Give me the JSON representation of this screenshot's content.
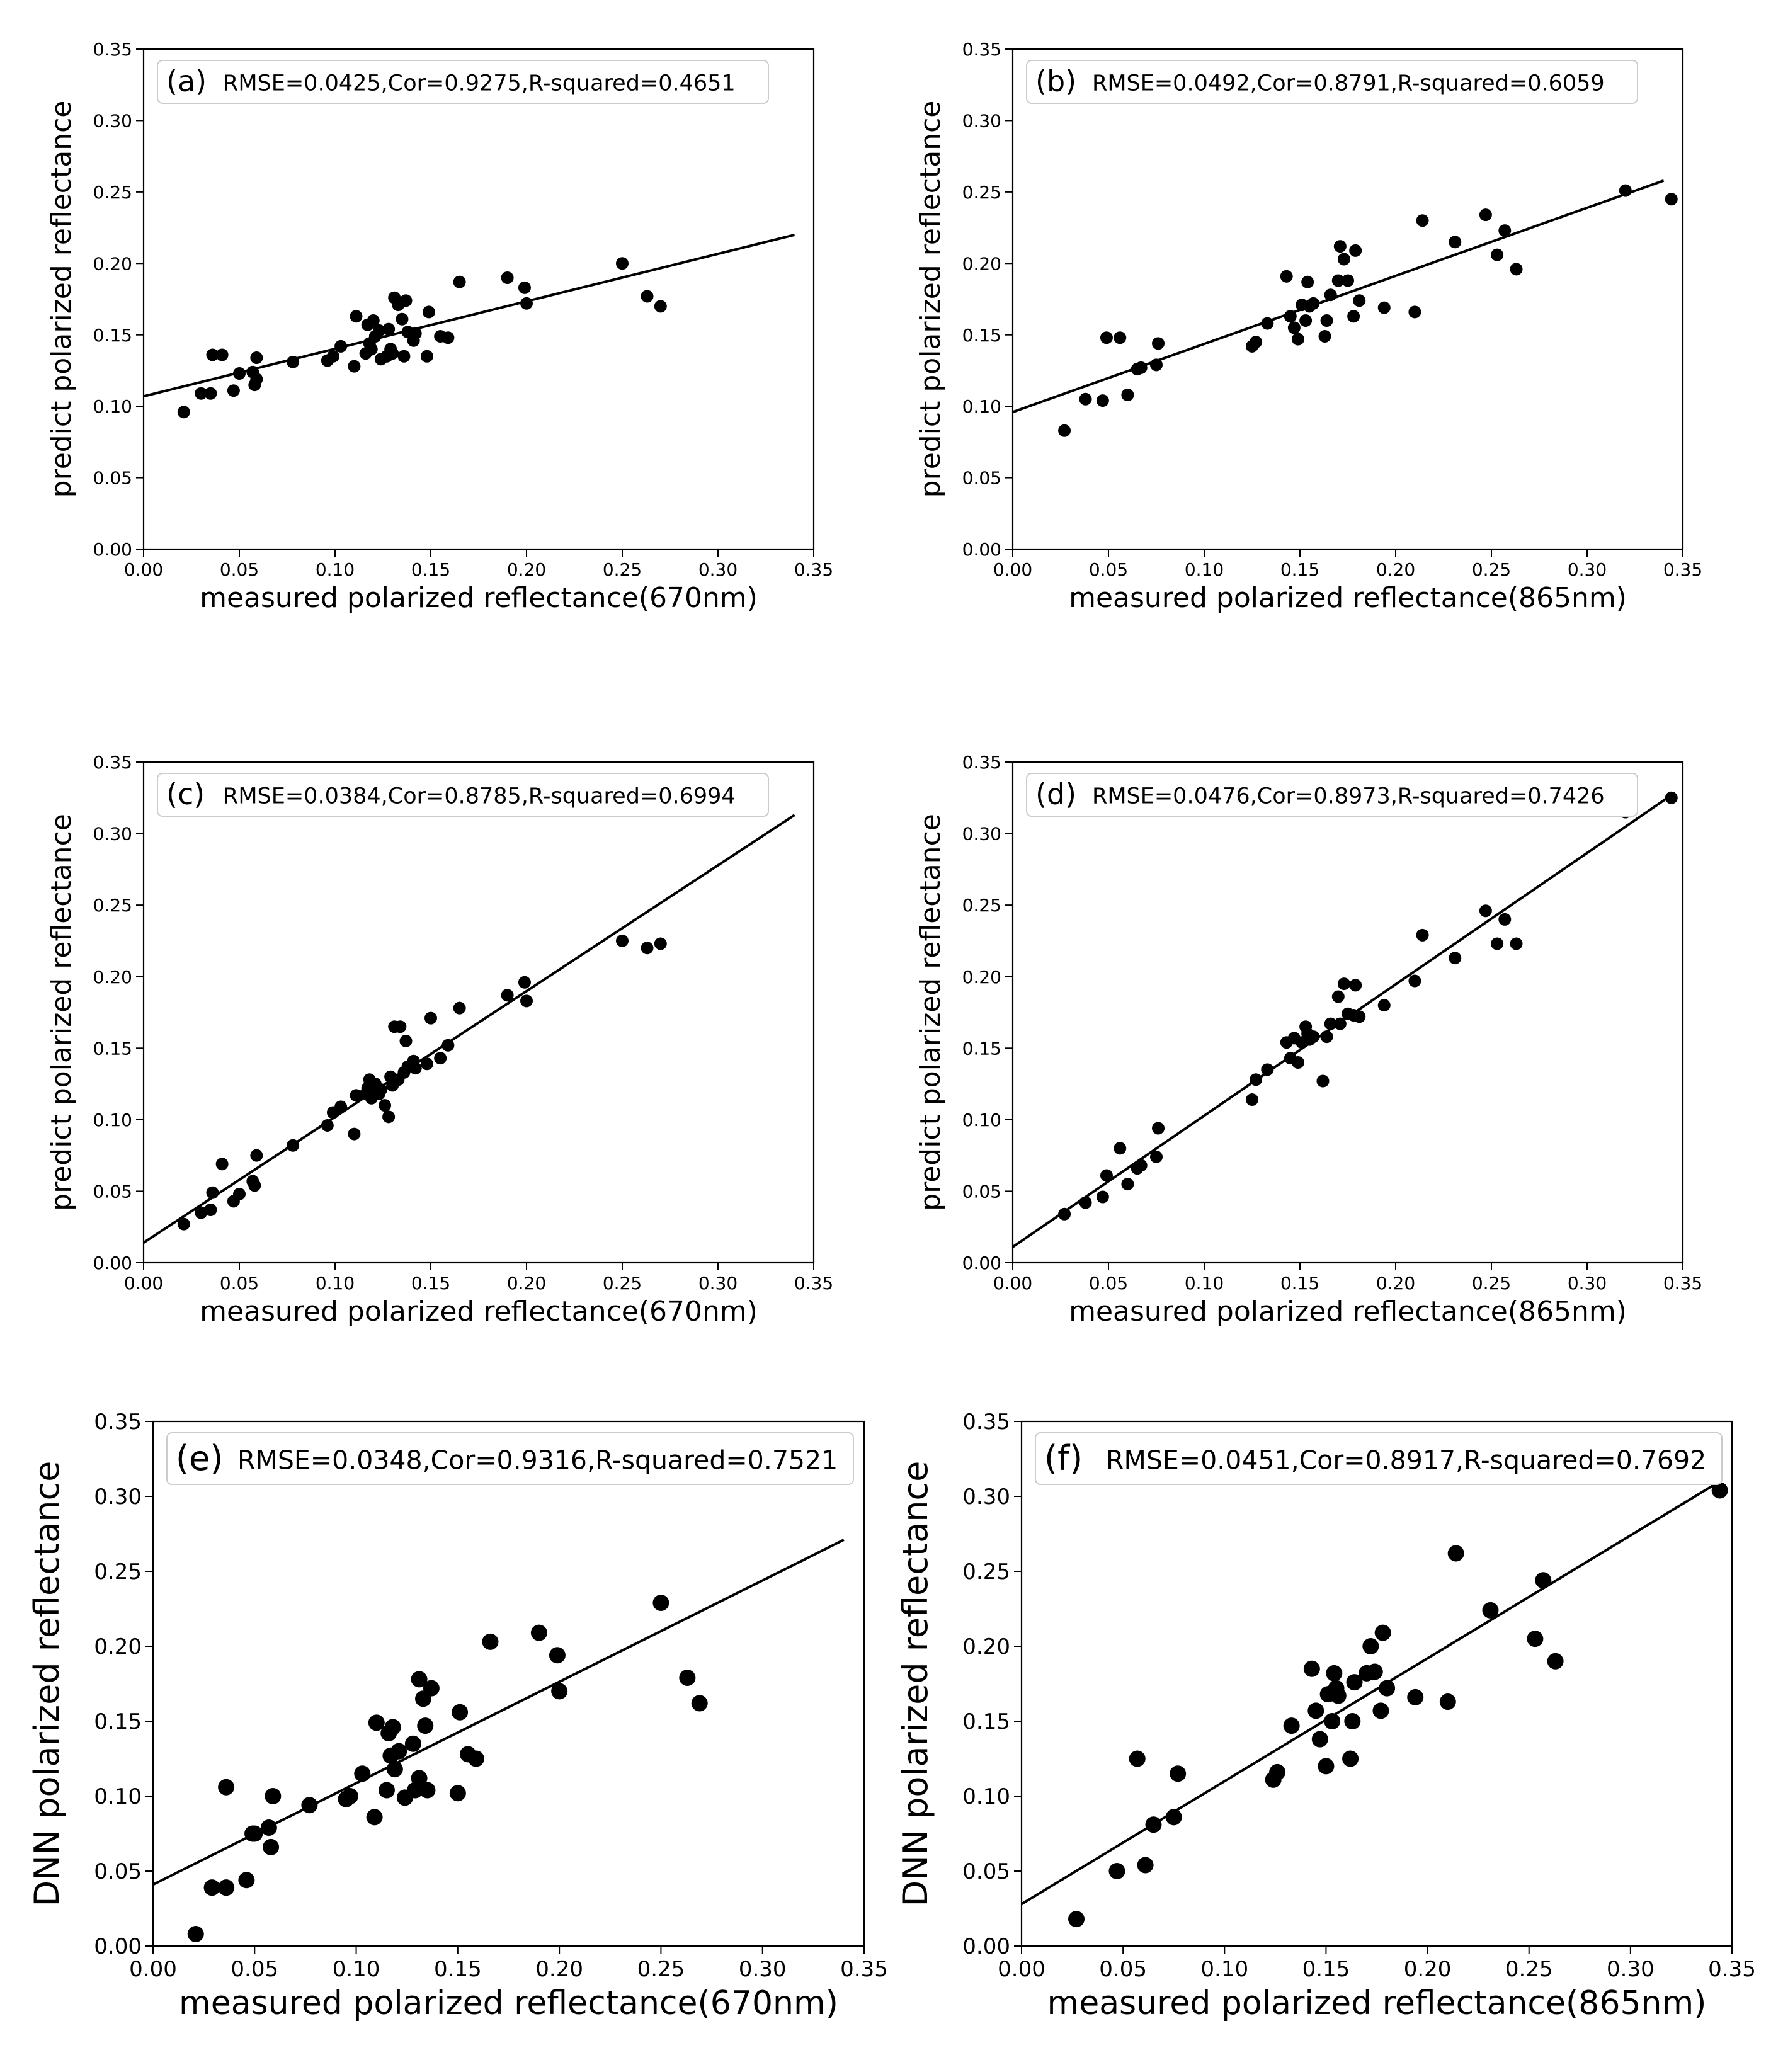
{
  "figure": {
    "colors": {
      "marker": "#000000",
      "line": "#000000",
      "background": "#ffffff",
      "legend_border": "#cccccc"
    }
  },
  "chart_data": [
    {
      "type": "scatter",
      "panel": "(a)",
      "annotation": "RMSE=0.0425,Cor=0.9275,R-squared=0.4651",
      "xlabel": "measured polarized reflectance(670nm)",
      "ylabel": "predict polarized reflectance",
      "xlim": [
        0,
        0.35
      ],
      "ylim": [
        0,
        0.35
      ],
      "xticks": [
        "0.00",
        "0.05",
        "0.10",
        "0.15",
        "0.20",
        "0.25",
        "0.30",
        "0.35"
      ],
      "yticks": [
        "0.00",
        "0.05",
        "0.10",
        "0.15",
        "0.20",
        "0.25",
        "0.30",
        "0.35"
      ],
      "fit_line": {
        "x": [
          0,
          0.34
        ],
        "y": [
          0.107,
          0.22
        ]
      },
      "points": [
        [
          0.021,
          0.096
        ],
        [
          0.03,
          0.109
        ],
        [
          0.035,
          0.109
        ],
        [
          0.036,
          0.136
        ],
        [
          0.041,
          0.136
        ],
        [
          0.047,
          0.111
        ],
        [
          0.05,
          0.123
        ],
        [
          0.057,
          0.124
        ],
        [
          0.058,
          0.115
        ],
        [
          0.059,
          0.119
        ],
        [
          0.059,
          0.134
        ],
        [
          0.078,
          0.131
        ],
        [
          0.096,
          0.132
        ],
        [
          0.099,
          0.135
        ],
        [
          0.103,
          0.142
        ],
        [
          0.11,
          0.128
        ],
        [
          0.111,
          0.163
        ],
        [
          0.116,
          0.137
        ],
        [
          0.117,
          0.157
        ],
        [
          0.118,
          0.144
        ],
        [
          0.119,
          0.14
        ],
        [
          0.12,
          0.16
        ],
        [
          0.121,
          0.149
        ],
        [
          0.123,
          0.153
        ],
        [
          0.124,
          0.133
        ],
        [
          0.127,
          0.135
        ],
        [
          0.128,
          0.154
        ],
        [
          0.129,
          0.14
        ],
        [
          0.13,
          0.137
        ],
        [
          0.131,
          0.176
        ],
        [
          0.133,
          0.171
        ],
        [
          0.135,
          0.161
        ],
        [
          0.136,
          0.135
        ],
        [
          0.137,
          0.174
        ],
        [
          0.138,
          0.152
        ],
        [
          0.141,
          0.146
        ],
        [
          0.142,
          0.151
        ],
        [
          0.148,
          0.135
        ],
        [
          0.149,
          0.166
        ],
        [
          0.155,
          0.149
        ],
        [
          0.159,
          0.148
        ],
        [
          0.165,
          0.187
        ],
        [
          0.19,
          0.19
        ],
        [
          0.199,
          0.183
        ],
        [
          0.2,
          0.172
        ],
        [
          0.25,
          0.2
        ],
        [
          0.263,
          0.177
        ],
        [
          0.27,
          0.17
        ]
      ]
    },
    {
      "type": "scatter",
      "panel": "(b)",
      "annotation": "RMSE=0.0492,Cor=0.8791,R-squared=0.6059",
      "xlabel": "measured polarized reflectance(865nm)",
      "ylabel": "predict polarized reflectance",
      "xlim": [
        0,
        0.35
      ],
      "ylim": [
        0,
        0.35
      ],
      "xticks": [
        "0.00",
        "0.05",
        "0.10",
        "0.15",
        "0.20",
        "0.25",
        "0.30",
        "0.35"
      ],
      "yticks": [
        "0.00",
        "0.05",
        "0.10",
        "0.15",
        "0.20",
        "0.25",
        "0.30",
        "0.35"
      ],
      "fit_line": {
        "x": [
          0,
          0.34
        ],
        "y": [
          0.096,
          0.258
        ]
      },
      "points": [
        [
          0.027,
          0.083
        ],
        [
          0.038,
          0.105
        ],
        [
          0.047,
          0.104
        ],
        [
          0.049,
          0.148
        ],
        [
          0.056,
          0.148
        ],
        [
          0.06,
          0.108
        ],
        [
          0.065,
          0.126
        ],
        [
          0.067,
          0.127
        ],
        [
          0.075,
          0.129
        ],
        [
          0.076,
          0.144
        ],
        [
          0.125,
          0.142
        ],
        [
          0.127,
          0.145
        ],
        [
          0.133,
          0.158
        ],
        [
          0.143,
          0.191
        ],
        [
          0.145,
          0.163
        ],
        [
          0.147,
          0.155
        ],
        [
          0.149,
          0.147
        ],
        [
          0.151,
          0.171
        ],
        [
          0.153,
          0.16
        ],
        [
          0.154,
          0.187
        ],
        [
          0.155,
          0.17
        ],
        [
          0.157,
          0.172
        ],
        [
          0.163,
          0.149
        ],
        [
          0.164,
          0.16
        ],
        [
          0.166,
          0.178
        ],
        [
          0.17,
          0.188
        ],
        [
          0.171,
          0.212
        ],
        [
          0.173,
          0.203
        ],
        [
          0.175,
          0.188
        ],
        [
          0.178,
          0.163
        ],
        [
          0.179,
          0.209
        ],
        [
          0.181,
          0.174
        ],
        [
          0.194,
          0.169
        ],
        [
          0.21,
          0.166
        ],
        [
          0.214,
          0.23
        ],
        [
          0.231,
          0.215
        ],
        [
          0.247,
          0.234
        ],
        [
          0.253,
          0.206
        ],
        [
          0.257,
          0.223
        ],
        [
          0.263,
          0.196
        ],
        [
          0.32,
          0.251
        ],
        [
          0.344,
          0.245
        ]
      ]
    },
    {
      "type": "scatter",
      "panel": "(c)",
      "annotation": "RMSE=0.0384,Cor=0.8785,R-squared=0.6994",
      "xlabel": "measured polarized reflectance(670nm)",
      "ylabel": "predict polarized reflectance",
      "xlim": [
        0,
        0.35
      ],
      "ylim": [
        0,
        0.35
      ],
      "xticks": [
        "0.00",
        "0.05",
        "0.10",
        "0.15",
        "0.20",
        "0.25",
        "0.30",
        "0.35"
      ],
      "yticks": [
        "0.00",
        "0.05",
        "0.10",
        "0.15",
        "0.20",
        "0.25",
        "0.30",
        "0.35"
      ],
      "fit_line": {
        "x": [
          0,
          0.34
        ],
        "y": [
          0.014,
          0.313
        ]
      },
      "points": [
        [
          0.021,
          0.027
        ],
        [
          0.03,
          0.035
        ],
        [
          0.035,
          0.037
        ],
        [
          0.036,
          0.049
        ],
        [
          0.041,
          0.069
        ],
        [
          0.047,
          0.043
        ],
        [
          0.05,
          0.048
        ],
        [
          0.057,
          0.057
        ],
        [
          0.058,
          0.054
        ],
        [
          0.059,
          0.075
        ],
        [
          0.078,
          0.082
        ],
        [
          0.096,
          0.096
        ],
        [
          0.099,
          0.105
        ],
        [
          0.103,
          0.109
        ],
        [
          0.11,
          0.09
        ],
        [
          0.111,
          0.117
        ],
        [
          0.116,
          0.118
        ],
        [
          0.117,
          0.122
        ],
        [
          0.118,
          0.128
        ],
        [
          0.119,
          0.115
        ],
        [
          0.12,
          0.12
        ],
        [
          0.121,
          0.125
        ],
        [
          0.123,
          0.118
        ],
        [
          0.124,
          0.121
        ],
        [
          0.126,
          0.11
        ],
        [
          0.128,
          0.102
        ],
        [
          0.129,
          0.13
        ],
        [
          0.13,
          0.124
        ],
        [
          0.131,
          0.165
        ],
        [
          0.133,
          0.128
        ],
        [
          0.134,
          0.165
        ],
        [
          0.136,
          0.133
        ],
        [
          0.137,
          0.155
        ],
        [
          0.138,
          0.137
        ],
        [
          0.141,
          0.141
        ],
        [
          0.142,
          0.136
        ],
        [
          0.148,
          0.139
        ],
        [
          0.15,
          0.171
        ],
        [
          0.155,
          0.143
        ],
        [
          0.159,
          0.152
        ],
        [
          0.165,
          0.178
        ],
        [
          0.19,
          0.187
        ],
        [
          0.199,
          0.196
        ],
        [
          0.2,
          0.183
        ],
        [
          0.25,
          0.225
        ],
        [
          0.263,
          0.22
        ],
        [
          0.27,
          0.223
        ]
      ]
    },
    {
      "type": "scatter",
      "panel": "(d)",
      "annotation": "RMSE=0.0476,Cor=0.8973,R-squared=0.7426",
      "xlabel": "measured polarized reflectance(865nm)",
      "ylabel": "predict polarized reflectance",
      "xlim": [
        0,
        0.35
      ],
      "ylim": [
        0,
        0.35
      ],
      "xticks": [
        "0.00",
        "0.05",
        "0.10",
        "0.15",
        "0.20",
        "0.25",
        "0.30",
        "0.35"
      ],
      "yticks": [
        "0.00",
        "0.05",
        "0.10",
        "0.15",
        "0.20",
        "0.25",
        "0.30",
        "0.35"
      ],
      "fit_line": {
        "x": [
          0,
          0.342
        ],
        "y": [
          0.011,
          0.325
        ]
      },
      "points": [
        [
          0.027,
          0.034
        ],
        [
          0.038,
          0.042
        ],
        [
          0.047,
          0.046
        ],
        [
          0.049,
          0.061
        ],
        [
          0.056,
          0.08
        ],
        [
          0.06,
          0.055
        ],
        [
          0.065,
          0.066
        ],
        [
          0.067,
          0.068
        ],
        [
          0.075,
          0.074
        ],
        [
          0.076,
          0.094
        ],
        [
          0.125,
          0.114
        ],
        [
          0.127,
          0.128
        ],
        [
          0.133,
          0.135
        ],
        [
          0.143,
          0.154
        ],
        [
          0.145,
          0.143
        ],
        [
          0.147,
          0.157
        ],
        [
          0.149,
          0.14
        ],
        [
          0.151,
          0.154
        ],
        [
          0.153,
          0.165
        ],
        [
          0.154,
          0.16
        ],
        [
          0.155,
          0.156
        ],
        [
          0.157,
          0.158
        ],
        [
          0.162,
          0.127
        ],
        [
          0.164,
          0.158
        ],
        [
          0.166,
          0.167
        ],
        [
          0.17,
          0.186
        ],
        [
          0.171,
          0.167
        ],
        [
          0.173,
          0.195
        ],
        [
          0.175,
          0.174
        ],
        [
          0.178,
          0.173
        ],
        [
          0.179,
          0.194
        ],
        [
          0.181,
          0.172
        ],
        [
          0.194,
          0.18
        ],
        [
          0.21,
          0.197
        ],
        [
          0.214,
          0.229
        ],
        [
          0.231,
          0.213
        ],
        [
          0.247,
          0.246
        ],
        [
          0.253,
          0.223
        ],
        [
          0.257,
          0.24
        ],
        [
          0.263,
          0.223
        ],
        [
          0.32,
          0.315
        ],
        [
          0.344,
          0.325
        ]
      ]
    },
    {
      "type": "scatter",
      "panel": "(e)",
      "annotation": "RMSE=0.0348,Cor=0.9316,R-squared=0.7521",
      "xlabel": "measured polarized reflectance(670nm)",
      "ylabel": "DNN polarized reflectance",
      "xlim": [
        0,
        0.35
      ],
      "ylim": [
        0,
        0.35
      ],
      "xticks": [
        "0.00",
        "0.05",
        "0.10",
        "0.15",
        "0.20",
        "0.25",
        "0.30",
        "0.35"
      ],
      "yticks": [
        "0.00",
        "0.05",
        "0.10",
        "0.15",
        "0.20",
        "0.25",
        "0.30",
        "0.35"
      ],
      "fit_line": {
        "x": [
          0,
          0.34
        ],
        "y": [
          0.041,
          0.271
        ]
      },
      "points": [
        [
          0.021,
          0.008
        ],
        [
          0.029,
          0.039
        ],
        [
          0.036,
          0.039
        ],
        [
          0.036,
          0.106
        ],
        [
          0.046,
          0.044
        ],
        [
          0.049,
          0.075
        ],
        [
          0.05,
          0.075
        ],
        [
          0.057,
          0.079
        ],
        [
          0.058,
          0.066
        ],
        [
          0.059,
          0.1
        ],
        [
          0.077,
          0.094
        ],
        [
          0.095,
          0.098
        ],
        [
          0.097,
          0.1
        ],
        [
          0.103,
          0.115
        ],
        [
          0.109,
          0.086
        ],
        [
          0.11,
          0.149
        ],
        [
          0.115,
          0.104
        ],
        [
          0.116,
          0.142
        ],
        [
          0.117,
          0.127
        ],
        [
          0.118,
          0.146
        ],
        [
          0.119,
          0.118
        ],
        [
          0.121,
          0.13
        ],
        [
          0.124,
          0.099
        ],
        [
          0.128,
          0.135
        ],
        [
          0.129,
          0.104
        ],
        [
          0.131,
          0.178
        ],
        [
          0.131,
          0.112
        ],
        [
          0.133,
          0.165
        ],
        [
          0.134,
          0.147
        ],
        [
          0.135,
          0.104
        ],
        [
          0.137,
          0.172
        ],
        [
          0.15,
          0.102
        ],
        [
          0.151,
          0.156
        ],
        [
          0.155,
          0.128
        ],
        [
          0.159,
          0.125
        ],
        [
          0.166,
          0.203
        ],
        [
          0.19,
          0.209
        ],
        [
          0.199,
          0.194
        ],
        [
          0.2,
          0.17
        ],
        [
          0.25,
          0.229
        ],
        [
          0.263,
          0.179
        ],
        [
          0.269,
          0.162
        ]
      ]
    },
    {
      "type": "scatter",
      "panel": "(f)",
      "annotation": "RMSE=0.0451,Cor=0.8917,R-squared=0.7692",
      "xlabel": "measured polarized reflectance(865nm)",
      "ylabel": "DNN polarized reflectance",
      "xlim": [
        0,
        0.35
      ],
      "ylim": [
        0,
        0.35
      ],
      "xticks": [
        "0.00",
        "0.05",
        "0.10",
        "0.15",
        "0.20",
        "0.25",
        "0.30",
        "0.35"
      ],
      "yticks": [
        "0.00",
        "0.05",
        "0.10",
        "0.15",
        "0.20",
        "0.25",
        "0.30",
        "0.35"
      ],
      "fit_line": {
        "x": [
          0,
          0.344
        ],
        "y": [
          0.028,
          0.31
        ]
      },
      "points": [
        [
          0.027,
          0.018
        ],
        [
          0.047,
          0.05
        ],
        [
          0.057,
          0.125
        ],
        [
          0.061,
          0.054
        ],
        [
          0.065,
          0.081
        ],
        [
          0.075,
          0.086
        ],
        [
          0.077,
          0.115
        ],
        [
          0.124,
          0.111
        ],
        [
          0.126,
          0.116
        ],
        [
          0.133,
          0.147
        ],
        [
          0.143,
          0.185
        ],
        [
          0.145,
          0.157
        ],
        [
          0.147,
          0.138
        ],
        [
          0.15,
          0.12
        ],
        [
          0.151,
          0.168
        ],
        [
          0.153,
          0.15
        ],
        [
          0.154,
          0.182
        ],
        [
          0.155,
          0.172
        ],
        [
          0.156,
          0.167
        ],
        [
          0.162,
          0.125
        ],
        [
          0.163,
          0.15
        ],
        [
          0.164,
          0.176
        ],
        [
          0.17,
          0.182
        ],
        [
          0.172,
          0.2
        ],
        [
          0.174,
          0.183
        ],
        [
          0.177,
          0.157
        ],
        [
          0.178,
          0.209
        ],
        [
          0.18,
          0.172
        ],
        [
          0.194,
          0.166
        ],
        [
          0.21,
          0.163
        ],
        [
          0.214,
          0.262
        ],
        [
          0.231,
          0.224
        ],
        [
          0.253,
          0.205
        ],
        [
          0.257,
          0.244
        ],
        [
          0.263,
          0.19
        ],
        [
          0.344,
          0.304
        ]
      ]
    }
  ]
}
